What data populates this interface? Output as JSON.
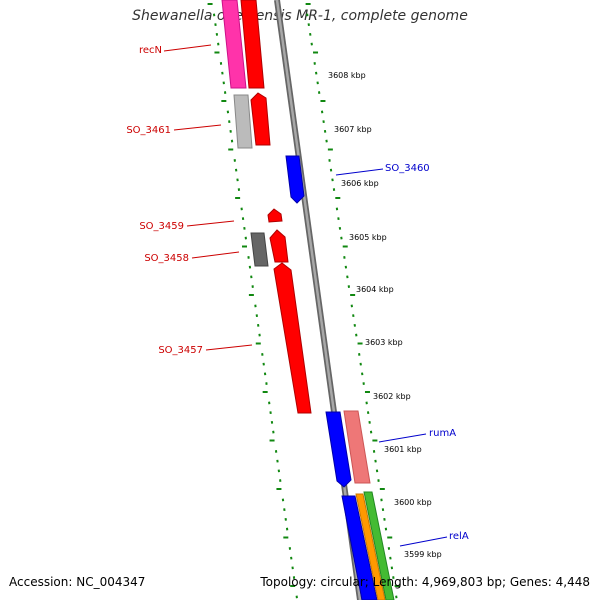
{
  "title": "Shewanella oneidensis MR-1, complete genome",
  "footer": {
    "accession": "Accession: NC_004347",
    "topology": "Topology: circular; Length: 4,969,803 bp; Genes: 4,448"
  },
  "colors": {
    "forward_gene": "#ff0000",
    "reverse_gene": "#0000ff",
    "pink_gene": "#ff33aa",
    "light_gray_gene": "#bbbbbb",
    "dark_gray_gene": "#666666",
    "salmon_gene": "#ee7777",
    "orange_gene": "#ff9900",
    "green_gene": "#44bb33",
    "backbone": "#888888",
    "tick": "#118811",
    "forward_label": "#cc0000",
    "reverse_label": "#0000cc"
  },
  "position_labels": [
    "3608 kbp",
    "3607 kbp",
    "3606 kbp",
    "3605 kbp",
    "3604 kbp",
    "3603 kbp",
    "3602 kbp",
    "3601 kbp",
    "3600 kbp",
    "3599 kbp"
  ],
  "gene_labels": [
    {
      "name": "recN",
      "strand": "forward"
    },
    {
      "name": "SO_3461",
      "strand": "forward"
    },
    {
      "name": "SO_3460",
      "strand": "reverse"
    },
    {
      "name": "SO_3459",
      "strand": "forward"
    },
    {
      "name": "SO_3458",
      "strand": "forward"
    },
    {
      "name": "SO_3457",
      "strand": "forward"
    },
    {
      "name": "rumA",
      "strand": "reverse"
    },
    {
      "name": "relA",
      "strand": "reverse"
    }
  ]
}
